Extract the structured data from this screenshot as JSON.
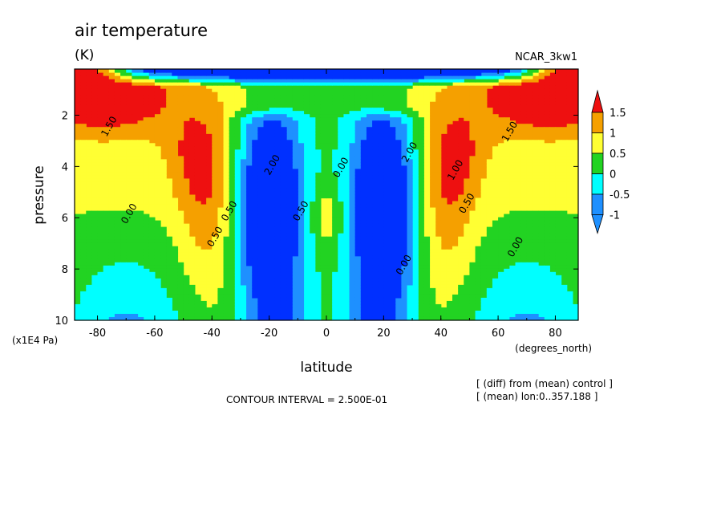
{
  "chart_data": {
    "type": "heatmap",
    "title": "air temperature",
    "units": "(K)",
    "model": "NCAR_3kw1",
    "xlabel": "latitude",
    "x_units": "(degrees_north)",
    "ylabel": "pressure",
    "y_units": "(x1E4 Pa)",
    "xlim": [
      -88,
      88
    ],
    "ylim": [
      10,
      0.2
    ],
    "x_ticks": [
      -80,
      -60,
      -40,
      -20,
      0,
      20,
      40,
      60,
      80
    ],
    "y_ticks": [
      2,
      4,
      6,
      8,
      10
    ],
    "colorbar": {
      "labels": [
        "1.5",
        "1",
        "0.5",
        "0",
        "-0.5",
        "-1"
      ],
      "levels": [
        1.5,
        1,
        0.5,
        0,
        -0.5,
        -1
      ],
      "colors": [
        "#ee1010",
        "#f5a000",
        "#ffff33",
        "#22d322",
        "#00ffff",
        "#1e90ff",
        "#0030ff"
      ]
    },
    "contour_interval_text": "CONTOUR INTERVAL = 2.500E-01",
    "notes": [
      "[ (diff) from (mean) control ]",
      "[ (mean) lon:0..357.188 ]"
    ],
    "contour_labels": [
      {
        "text": "0.00",
        "lat": -68,
        "p": 5.9
      },
      {
        "text": "0.50",
        "lat": -38,
        "p": 6.8
      },
      {
        "text": "0.50",
        "lat": -33,
        "p": 5.8
      },
      {
        "text": "1.50",
        "lat": -75,
        "p": 2.5
      },
      {
        "text": "2.00",
        "lat": -18,
        "p": 4.0
      },
      {
        "text": "0.50",
        "lat": -8,
        "p": 5.8
      },
      {
        "text": "0.00",
        "lat": 6,
        "p": 4.1
      },
      {
        "text": "2.00",
        "lat": 30,
        "p": 3.5
      },
      {
        "text": "0.00",
        "lat": 28,
        "p": 7.9
      },
      {
        "text": "1.00",
        "lat": 46,
        "p": 4.2
      },
      {
        "text": "0.50",
        "lat": 50,
        "p": 5.5
      },
      {
        "text": "0.00",
        "lat": 67,
        "p": 7.2
      },
      {
        "text": "1.50",
        "lat": 65,
        "p": 2.7
      }
    ]
  }
}
